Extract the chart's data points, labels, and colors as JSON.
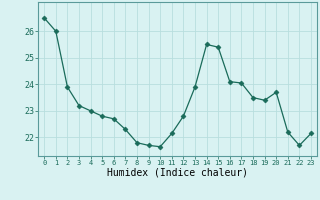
{
  "x": [
    0,
    1,
    2,
    3,
    4,
    5,
    6,
    7,
    8,
    9,
    10,
    11,
    12,
    13,
    14,
    15,
    16,
    17,
    18,
    19,
    20,
    21,
    22,
    23
  ],
  "y": [
    26.5,
    26.0,
    23.9,
    23.2,
    23.0,
    22.8,
    22.7,
    22.3,
    21.8,
    21.7,
    21.65,
    22.15,
    22.8,
    23.9,
    25.5,
    25.4,
    24.1,
    24.05,
    23.5,
    23.4,
    23.7,
    22.2,
    21.7,
    22.15
  ],
  "xlabel": "Humidex (Indice chaleur)",
  "ylim": [
    21.3,
    27.1
  ],
  "yticks": [
    22,
    23,
    24,
    25,
    26
  ],
  "xticks": [
    0,
    1,
    2,
    3,
    4,
    5,
    6,
    7,
    8,
    9,
    10,
    11,
    12,
    13,
    14,
    15,
    16,
    17,
    18,
    19,
    20,
    21,
    22,
    23
  ],
  "line_color": "#1a6b5a",
  "marker": "D",
  "marker_size": 2.5,
  "bg_color": "#d9f2f2",
  "grid_color": "#b8dede",
  "xlabel_fontsize": 7,
  "xtick_fontsize": 5,
  "ytick_fontsize": 6
}
